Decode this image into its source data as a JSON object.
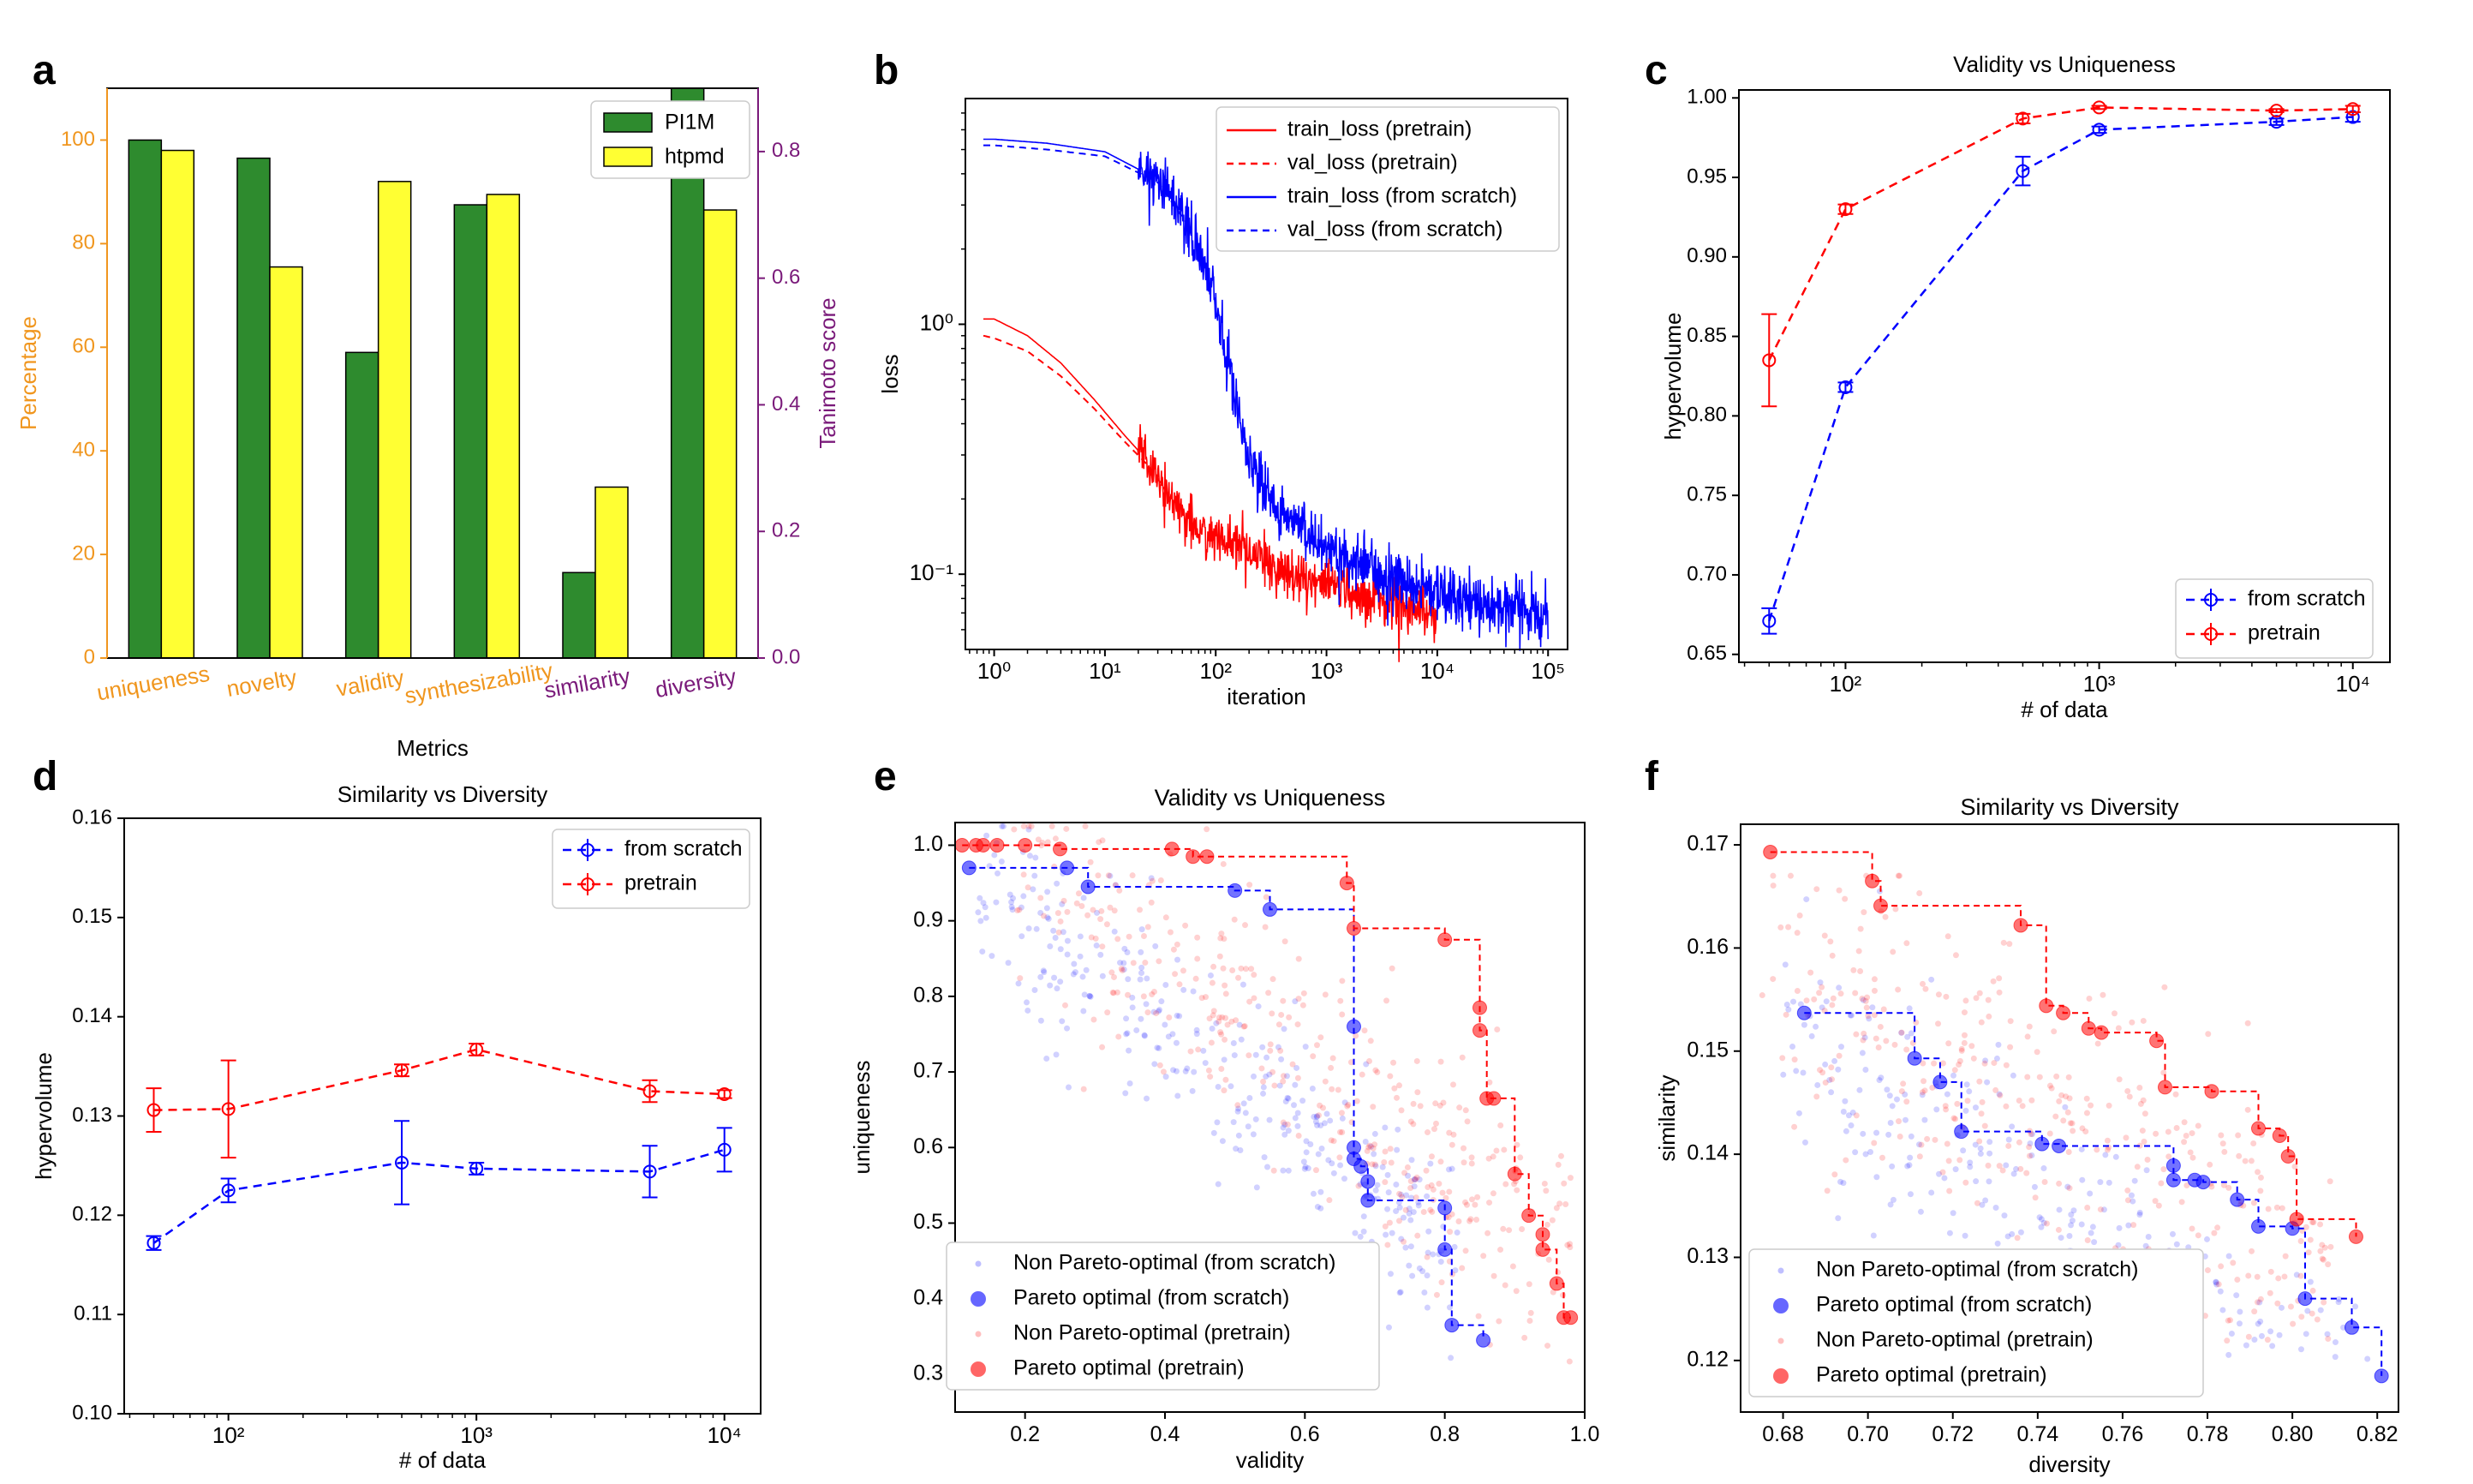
{
  "colors": {
    "green": "#2e8b2e",
    "yellow": "#ffff33",
    "orange": "#f0961e",
    "purple": "#7a1a7a",
    "blue": "#0000ff",
    "red": "#ff0000",
    "axis": "#000000"
  },
  "panels": {
    "a": {
      "label": "a",
      "chart_data": {
        "type": "bar",
        "title": "",
        "xlabel": "Metrics",
        "ylabel": "Percentage",
        "y2label": "Tanimoto score",
        "ylim": [
          0,
          110
        ],
        "yticks": [
          0,
          20,
          40,
          60,
          80,
          100
        ],
        "y2lim": [
          0,
          0.9
        ],
        "y2ticks": [
          "0.0",
          "0.2",
          "0.4",
          "0.6",
          "0.8"
        ],
        "categories": [
          "uniqueness",
          "novelty",
          "validity",
          "synthesizability",
          "similarity",
          "diversity"
        ],
        "category_axis": [
          "left",
          "left",
          "left",
          "left",
          "right",
          "right"
        ],
        "series": [
          {
            "name": "PI1M",
            "values": [
              100,
              96.5,
              59,
              87.5,
              16.5,
              113
            ]
          },
          {
            "name": "htpmd",
            "values": [
              98,
              75.5,
              92,
              89.5,
              33,
              86.5
            ]
          }
        ],
        "legend_loc": "top-right"
      }
    },
    "b": {
      "label": "b",
      "chart_data": {
        "type": "line",
        "xscale": "log",
        "yscale": "log",
        "xlabel": "iteration",
        "ylabel": "loss",
        "xticks": [
          "10⁰",
          "10¹",
          "10²",
          "10³",
          "10⁴",
          "10⁵"
        ],
        "yticks": [
          "10⁰",
          "10⁻¹"
        ],
        "series": [
          {
            "name": "train_loss (pretrain)",
            "x": [
              0.8,
              1,
              2,
              4,
              8,
              15,
              25,
              40,
              60,
              100,
              200,
              500,
              1000,
              3000,
              10000
            ],
            "y": [
              1.05,
              1.05,
              0.9,
              0.7,
              0.5,
              0.36,
              0.28,
              0.2,
              0.16,
              0.14,
              0.12,
              0.1,
              0.09,
              0.08,
              0.07
            ]
          },
          {
            "name": "val_loss (pretrain)",
            "x": [
              0.8,
              1,
              2,
              4,
              8,
              15,
              25,
              40
            ],
            "y": [
              0.9,
              0.88,
              0.78,
              0.62,
              0.46,
              0.34,
              0.27,
              0.2
            ]
          },
          {
            "name": "train_loss (from scratch)",
            "x": [
              0.8,
              1,
              3,
              10,
              30,
              60,
              100,
              150,
              200,
              300,
              500,
              1000,
              3000,
              10000,
              30000,
              100000
            ],
            "y": [
              5.5,
              5.5,
              5.3,
              4.9,
              3.8,
              2.4,
              1.2,
              0.5,
              0.3,
              0.2,
              0.16,
              0.13,
              0.1,
              0.085,
              0.075,
              0.07
            ]
          },
          {
            "name": "val_loss (from scratch)",
            "x": [
              0.8,
              1,
              3,
              10,
              30,
              60
            ],
            "y": [
              5.2,
              5.2,
              5.0,
              4.7,
              3.7,
              2.4
            ]
          }
        ],
        "legend_loc": "top-right"
      }
    },
    "c": {
      "label": "c",
      "chart_data": {
        "type": "line",
        "title": "Validity vs Uniqueness",
        "xscale": "log",
        "xlabel": "# of data",
        "ylabel": "hypervolume",
        "ylim": [
          0.65,
          1.0
        ],
        "yticks": [
          "0.65",
          "0.70",
          "0.75",
          "0.80",
          "0.85",
          "0.90",
          "0.95",
          "1.00"
        ],
        "xticks": [
          "10²",
          "10³",
          "10⁴"
        ],
        "x": [
          50,
          100,
          500,
          1000,
          5000,
          10000
        ],
        "series": [
          {
            "name": "from scratch",
            "values": [
              0.671,
              0.818,
              0.954,
              0.98,
              0.985,
              0.988
            ],
            "err": [
              0.008,
              0.003,
              0.009,
              0.002,
              0.002,
              0.003
            ]
          },
          {
            "name": "pretrain",
            "values": [
              0.835,
              0.93,
              0.987,
              0.994,
              0.992,
              0.993
            ],
            "err": [
              0.029,
              0.003,
              0.003,
              0.001,
              0.001,
              0.002
            ]
          }
        ],
        "legend_loc": "lower-right"
      }
    },
    "d": {
      "label": "d",
      "chart_data": {
        "type": "line",
        "title": "Similarity vs Diversity",
        "xscale": "log",
        "xlabel": "# of data",
        "ylabel": "hypervolume",
        "ylim": [
          0.1,
          0.16
        ],
        "yticks": [
          "0.10",
          "0.11",
          "0.12",
          "0.13",
          "0.14",
          "0.15",
          "0.16"
        ],
        "xticks": [
          "10²",
          "10³",
          "10⁴"
        ],
        "x": [
          50,
          100,
          500,
          1000,
          5000,
          10000
        ],
        "series": [
          {
            "name": "from scratch",
            "values": [
              0.1172,
              0.1225,
              0.1253,
              0.1247,
              0.1244,
              0.1266
            ],
            "err": [
              0.0007,
              0.0012,
              0.0042,
              0.0006,
              0.0026,
              0.0022
            ]
          },
          {
            "name": "pretrain",
            "values": [
              0.1306,
              0.1307,
              0.1346,
              0.1367,
              0.1325,
              0.1322
            ],
            "err": [
              0.0022,
              0.0049,
              0.0006,
              0.0006,
              0.0011,
              0.0004
            ]
          }
        ],
        "legend_loc": "top-right"
      }
    },
    "e": {
      "label": "e",
      "chart_data": {
        "type": "scatter",
        "title": "Validity vs Uniqueness",
        "xlabel": "validity",
        "ylabel": "uniqueness",
        "xlim": [
          0.1,
          1.0
        ],
        "ylim": [
          0.25,
          1.03
        ],
        "xticks": [
          "0.2",
          "0.4",
          "0.6",
          "0.8",
          "1.0"
        ],
        "yticks": [
          "0.3",
          "0.4",
          "0.5",
          "0.6",
          "0.7",
          "0.8",
          "0.9",
          "1.0"
        ],
        "series": [
          {
            "name": "Non Pareto-optimal (from scratch)",
            "cloud": {
              "x_range": [
                0.12,
                0.82
              ],
              "y_center_fn": "1.05-0.72*x",
              "spread": 0.06,
              "n": 320
            }
          },
          {
            "name": "Pareto optimal (from scratch)",
            "x": [
              0.12,
              0.26,
              0.29,
              0.5,
              0.55,
              0.67,
              0.67,
              0.67,
              0.68,
              0.69,
              0.69,
              0.8,
              0.8,
              0.81,
              0.855
            ],
            "y": [
              0.97,
              0.97,
              0.945,
              0.94,
              0.915,
              0.76,
              0.6,
              0.585,
              0.575,
              0.555,
              0.53,
              0.52,
              0.465,
              0.365,
              0.345
            ]
          },
          {
            "name": "Non Pareto-optimal (pretrain)",
            "cloud": {
              "x_range": [
                0.18,
                0.98
              ],
              "y_center_fn": "1.1-0.65*x",
              "spread": 0.08,
              "n": 360
            }
          },
          {
            "name": "Pareto optimal (pretrain)",
            "x": [
              0.11,
              0.13,
              0.14,
              0.16,
              0.2,
              0.25,
              0.41,
              0.44,
              0.46,
              0.66,
              0.67,
              0.8,
              0.85,
              0.85,
              0.86,
              0.87,
              0.9,
              0.92,
              0.94,
              0.94,
              0.96,
              0.97,
              0.98
            ],
            "y": [
              1.0,
              1.0,
              1.0,
              1.0,
              1.0,
              0.995,
              0.995,
              0.985,
              0.985,
              0.95,
              0.89,
              0.875,
              0.785,
              0.755,
              0.665,
              0.665,
              0.565,
              0.51,
              0.485,
              0.465,
              0.42,
              0.375,
              0.375
            ]
          }
        ],
        "legend_loc": "lower-left"
      }
    },
    "f": {
      "label": "f",
      "chart_data": {
        "type": "scatter",
        "title": "Similarity vs Diversity",
        "xlabel": "diversity",
        "ylabel": "similarity",
        "xlim": [
          0.67,
          0.825
        ],
        "ylim": [
          0.115,
          0.172
        ],
        "xticks": [
          "0.68",
          "0.70",
          "0.72",
          "0.74",
          "0.76",
          "0.78",
          "0.80",
          "0.82"
        ],
        "yticks": [
          "0.12",
          "0.13",
          "0.14",
          "0.15",
          "0.16",
          "0.17"
        ],
        "series": [
          {
            "name": "Non Pareto-optimal (from scratch)",
            "cloud": {
              "x_range": [
                0.68,
                0.82
              ],
              "y_center_fn": "0.152-0.28*(x-0.68)",
              "spread": 0.006,
              "n": 330
            }
          },
          {
            "name": "Pareto optimal (from scratch)",
            "x": [
              0.685,
              0.711,
              0.717,
              0.722,
              0.741,
              0.745,
              0.772,
              0.772,
              0.777,
              0.779,
              0.787,
              0.792,
              0.8,
              0.803,
              0.814,
              0.821
            ],
            "y": [
              0.1537,
              0.1493,
              0.147,
              0.1422,
              0.141,
              0.1408,
              0.1389,
              0.1375,
              0.1375,
              0.1373,
              0.1356,
              0.133,
              0.1328,
              0.126,
              0.1232,
              0.1185
            ]
          },
          {
            "name": "Non Pareto-optimal (pretrain)",
            "cloud": {
              "x_range": [
                0.675,
                0.81
              ],
              "y_center_fn": "0.158-0.23*(x-0.68)",
              "spread": 0.0075,
              "n": 360
            }
          },
          {
            "name": "Pareto optimal (pretrain)",
            "x": [
              0.677,
              0.701,
              0.703,
              0.736,
              0.742,
              0.746,
              0.752,
              0.755,
              0.768,
              0.77,
              0.781,
              0.792,
              0.797,
              0.799,
              0.801,
              0.815
            ],
            "y": [
              0.1693,
              0.1665,
              0.1641,
              0.1622,
              0.1544,
              0.1537,
              0.1522,
              0.1518,
              0.151,
              0.1465,
              0.1461,
              0.1425,
              0.1418,
              0.1398,
              0.1337,
              0.132
            ]
          }
        ],
        "legend_loc": "lower-left"
      }
    }
  }
}
